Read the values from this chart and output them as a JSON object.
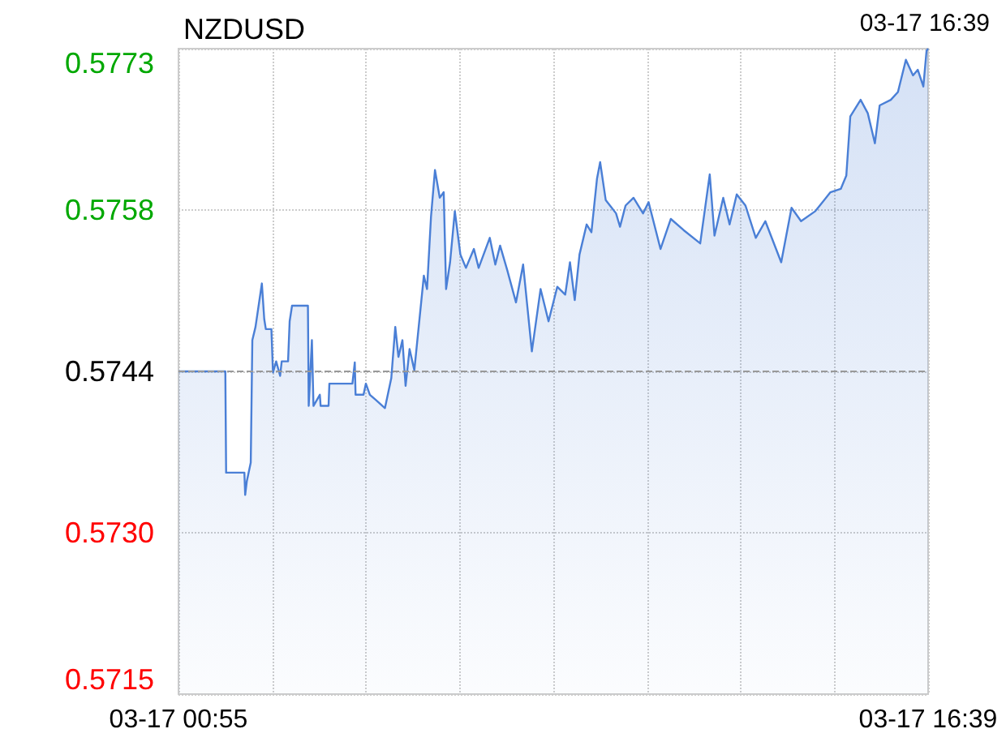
{
  "chart_data": {
    "type": "area",
    "title": "NZDUSD",
    "annotations": [
      "03-17 16:39"
    ],
    "x": [
      "--03-17T00:55",
      "--03-17T01:54",
      "--03-17T01:55",
      "--03-17T02:18",
      "--03-17T02:19",
      "--03-17T02:21",
      "--03-17T02:26",
      "--03-17T02:28",
      "--03-17T02:32",
      "--03-17T02:40",
      "--03-17T02:43",
      "--03-17T02:45",
      "--03-17T02:52",
      "--03-17T02:54",
      "--03-17T02:58",
      "--03-17T03:03",
      "--03-17T03:05",
      "--03-17T03:13",
      "--03-17T03:15",
      "--03-17T03:18",
      "--03-17T03:38",
      "--03-17T03:39",
      "--03-17T03:43",
      "--03-17T03:45",
      "--03-17T03:53",
      "--03-17T03:54",
      "--03-17T04:04",
      "--03-17T04:05",
      "--03-17T04:34",
      "--03-17T04:37",
      "--03-17T04:38",
      "--03-17T04:48",
      "--03-17T04:51",
      "--03-17T04:56",
      "--03-17T05:04",
      "--03-17T05:15",
      "--03-17T05:23",
      "--03-17T05:28",
      "--03-17T05:32",
      "--03-17T05:37",
      "--03-17T05:41",
      "--03-17T05:46",
      "--03-17T05:52",
      "--03-17T06:04",
      "--03-17T06:08",
      "--03-17T06:13",
      "--03-17T06:18",
      "--03-17T06:24",
      "--03-17T06:29",
      "--03-17T06:32",
      "--03-17T06:37",
      "--03-17T06:43",
      "--03-17T06:50",
      "--03-17T06:57",
      "--03-17T07:07",
      "--03-17T07:13",
      "--03-17T07:27",
      "--03-17T07:34",
      "--03-17T07:40",
      "--03-17T07:49",
      "--03-17T08:00",
      "--03-17T08:09",
      "--03-17T08:20",
      "--03-17T08:31",
      "--03-17T08:41",
      "--03-17T08:52",
      "--03-17T09:02",
      "--03-17T09:08",
      "--03-17T09:14",
      "--03-17T09:20",
      "--03-17T09:29",
      "--03-17T09:35",
      "--03-17T09:42",
      "--03-17T09:46",
      "--03-17T09:53",
      "--03-17T10:06",
      "--03-17T10:11",
      "--03-17T10:18",
      "--03-17T10:28",
      "--03-17T10:40",
      "--03-17T10:47",
      "--03-17T11:02",
      "--03-17T11:15",
      "--03-17T11:31",
      "--03-17T11:52",
      "--03-17T12:04",
      "--03-17T12:10",
      "--03-17T12:21",
      "--03-17T12:29",
      "--03-17T12:38",
      "--03-17T12:49",
      "--03-17T13:02",
      "--03-17T13:14",
      "--03-17T13:34",
      "--03-17T13:47",
      "--03-17T13:59",
      "--03-17T14:17",
      "--03-17T14:36",
      "--03-17T14:49",
      "--03-17T14:56",
      "--03-17T15:01",
      "--03-17T15:14",
      "--03-17T15:23",
      "--03-17T15:32",
      "--03-17T15:38",
      "--03-17T15:52",
      "--03-17T16:01",
      "--03-17T16:11",
      "--03-17T16:20",
      "--03-17T16:26",
      "--03-17T16:33",
      "--03-17T16:37",
      "--03-17T16:39"
    ],
    "series": [
      {
        "color": "#4a7fd6",
        "values": [
          0.5744,
          0.5744,
          0.57349,
          0.57349,
          0.57329,
          0.57341,
          0.57358,
          0.57468,
          0.5748,
          0.57519,
          0.57487,
          0.57478,
          0.57478,
          0.57439,
          0.57449,
          0.57436,
          0.57449,
          0.57449,
          0.57485,
          0.57499,
          0.57499,
          0.57409,
          0.57468,
          0.57409,
          0.57419,
          0.57409,
          0.57409,
          0.57429,
          0.57429,
          0.57448,
          0.57419,
          0.57419,
          0.57429,
          0.57419,
          0.57414,
          0.57407,
          0.57434,
          0.5748,
          0.57453,
          0.57468,
          0.57427,
          0.5746,
          0.57441,
          0.57526,
          0.57514,
          0.57579,
          0.57621,
          0.57596,
          0.57601,
          0.57514,
          0.57538,
          0.57584,
          0.57545,
          0.57533,
          0.5755,
          0.57533,
          0.5756,
          0.57536,
          0.57553,
          0.57531,
          0.57502,
          0.57536,
          0.57458,
          0.57514,
          0.57485,
          0.57516,
          0.57509,
          0.57538,
          0.57504,
          0.57545,
          0.57572,
          0.57565,
          0.57613,
          0.57628,
          0.57594,
          0.57582,
          0.5757,
          0.57589,
          0.57596,
          0.57582,
          0.57592,
          0.5755,
          0.57577,
          0.57567,
          0.57555,
          0.57617,
          0.57562,
          0.57596,
          0.57572,
          0.57599,
          0.57589,
          0.5756,
          0.57575,
          0.57538,
          0.57587,
          0.57575,
          0.57584,
          0.57601,
          0.57604,
          0.57616,
          0.57669,
          0.57684,
          0.57672,
          0.57645,
          0.57679,
          0.57684,
          0.57691,
          0.5772,
          0.57706,
          0.57711,
          0.57696,
          0.57728,
          0.5773
        ]
      }
    ],
    "xlim": [
      "--03-17T00:55",
      "--03-17T16:39"
    ],
    "xticks": [
      {
        "value": "--03-17T00:55",
        "label": "03-17 00:55"
      },
      {
        "value": "--03-17T02:53",
        "label": null
      },
      {
        "value": "--03-17T04:51",
        "label": null
      },
      {
        "value": "--03-17T06:49",
        "label": null
      },
      {
        "value": "--03-17T08:47",
        "label": null
      },
      {
        "value": "--03-17T10:45",
        "label": null
      },
      {
        "value": "--03-17T12:43",
        "label": null
      },
      {
        "value": "--03-17T14:41",
        "label": null
      },
      {
        "value": "--03-17T16:39",
        "label": "03-17 16:39"
      }
    ],
    "ylim": [
      0.5715,
      0.5773
    ],
    "yticks": [
      0.5715,
      {
        "value": 0.57295,
        "label": "0.5730"
      },
      0.5744,
      {
        "value": 0.57585,
        "label": "0.5758"
      },
      0.5773
    ],
    "ref_lines": [
      {
        "axis": "y",
        "value": 0.5744,
        "color": "#999999",
        "line_style": "dashed"
      }
    ],
    "grid": true,
    "marker": "none",
    "line_style": "solid"
  }
}
